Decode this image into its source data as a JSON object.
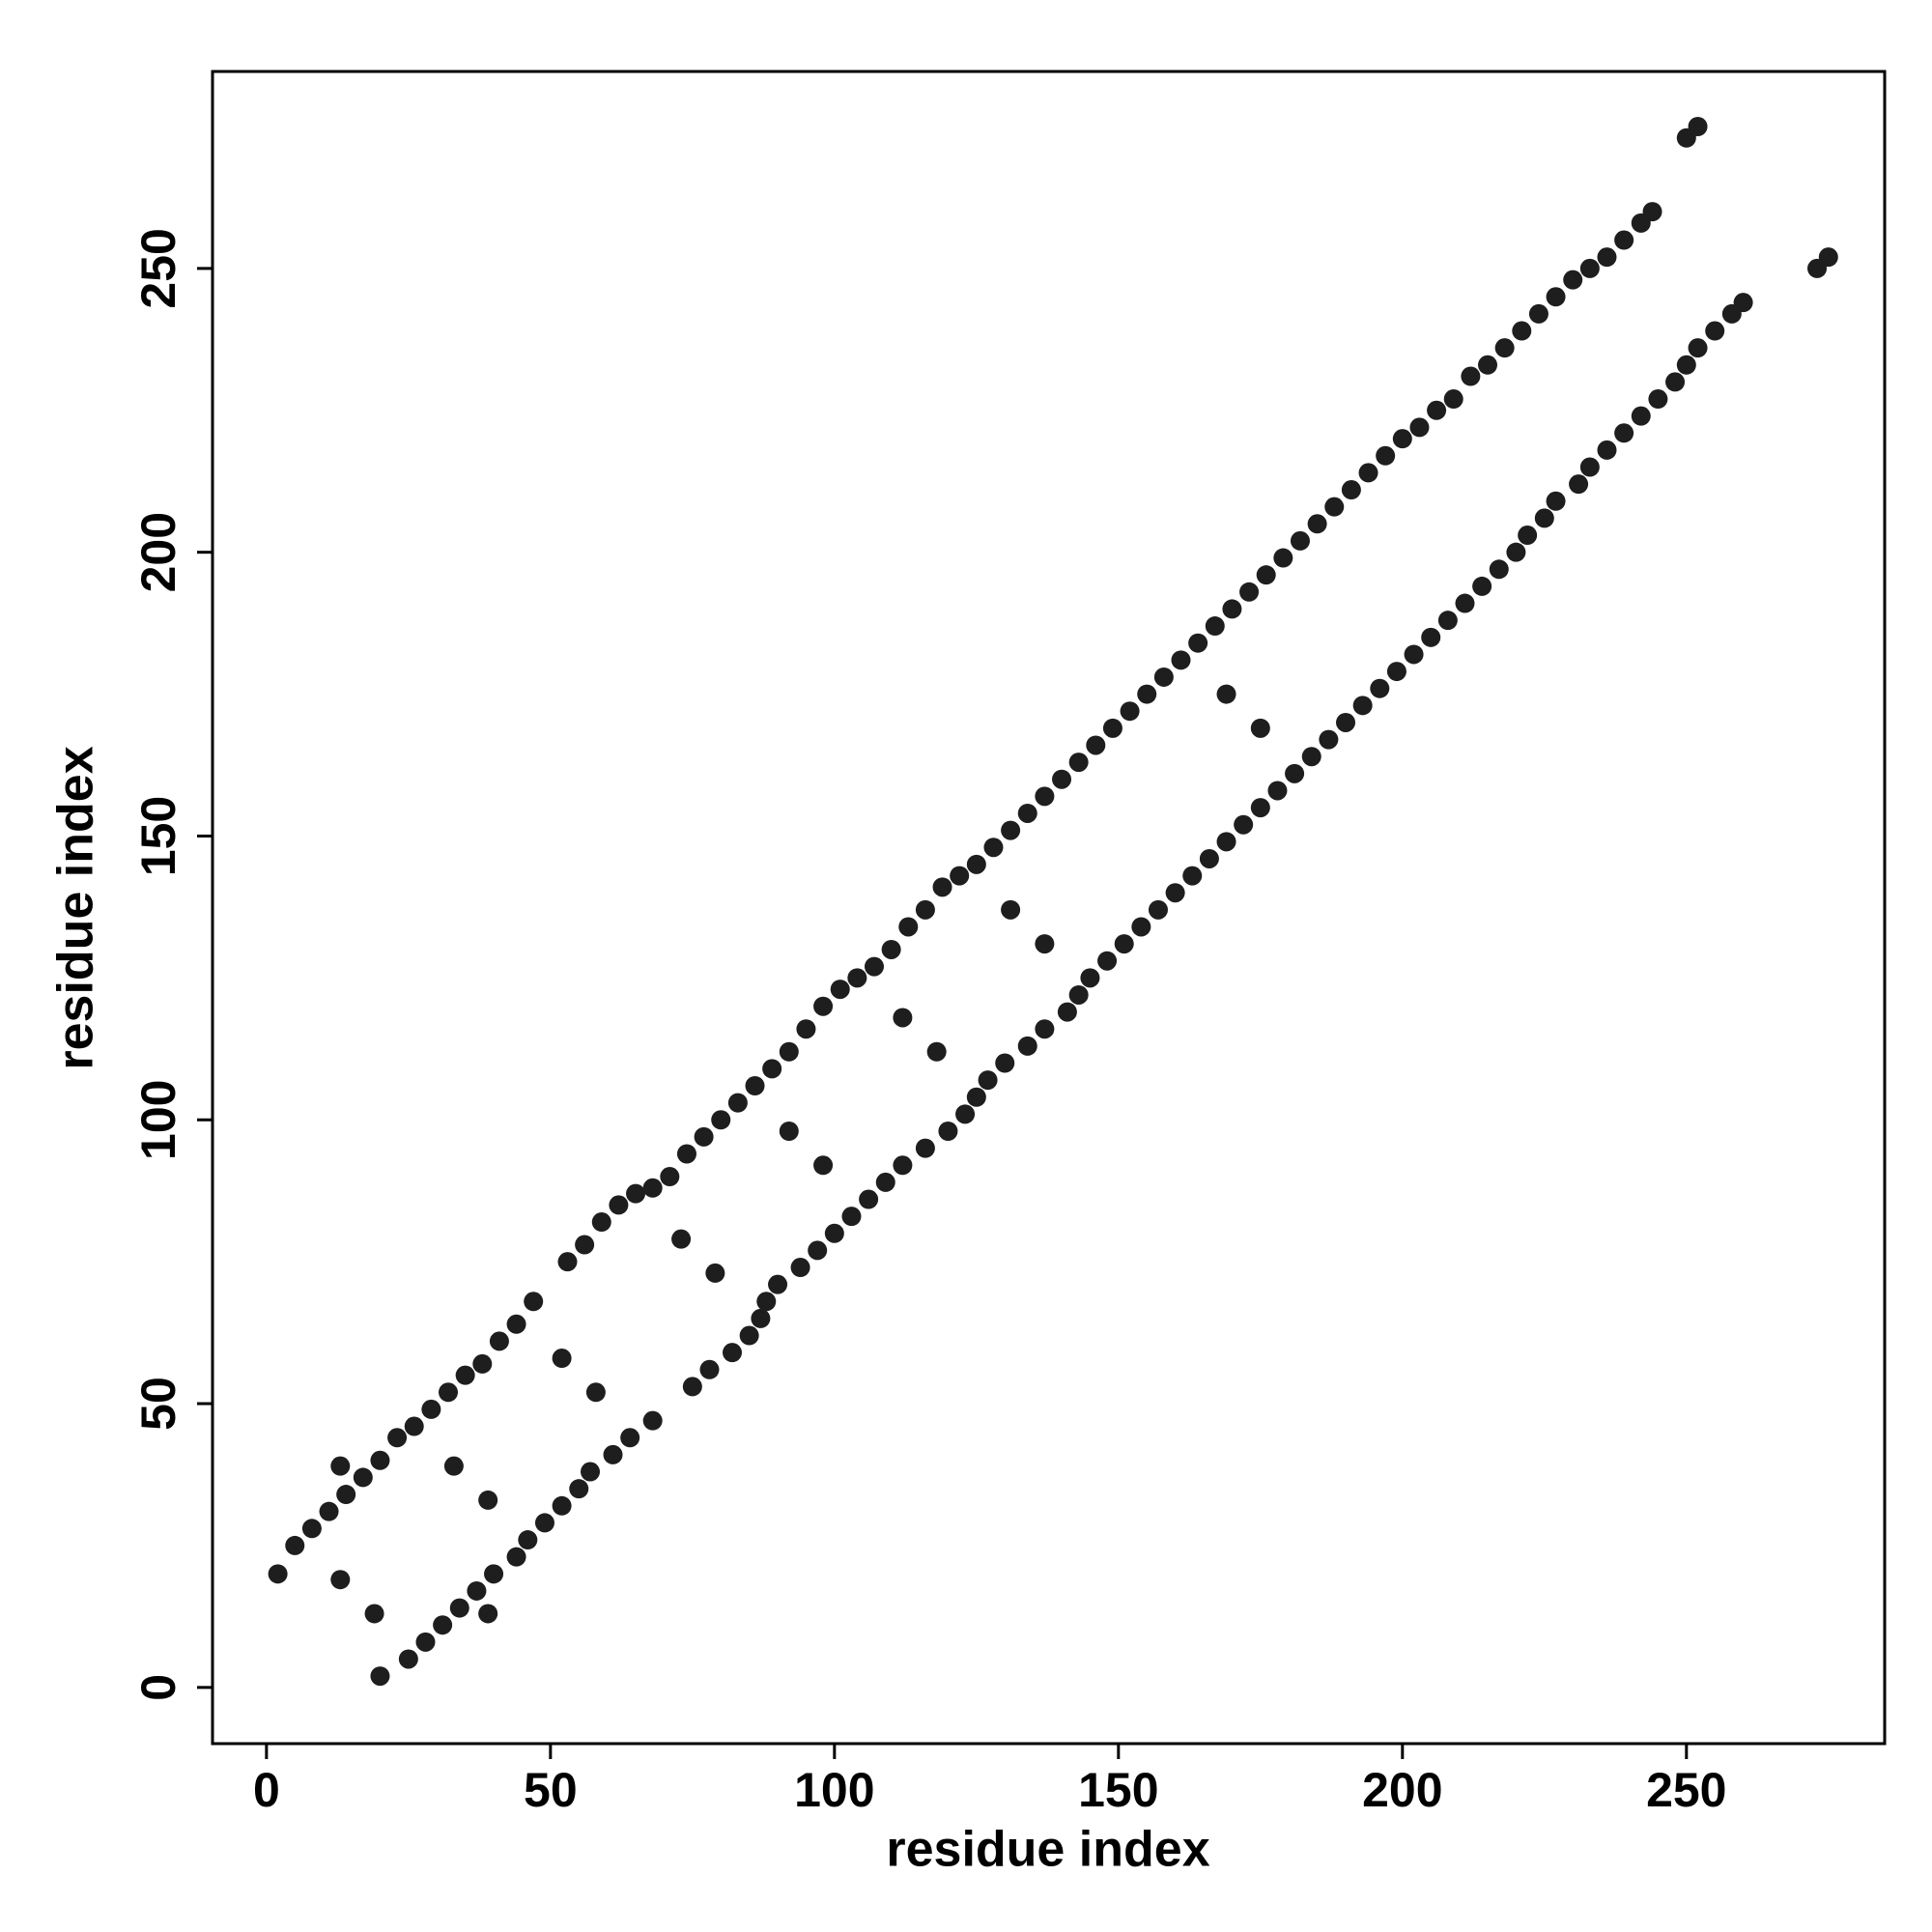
{
  "chart_data": {
    "type": "scatter",
    "x_label": "residue index",
    "y_label": "residue index",
    "color": "#1e1e1e",
    "xlim": [
      -9.5,
      284.9
    ],
    "ylim": [
      -9.9,
      284.7
    ],
    "xticks": [
      0,
      50,
      100,
      150,
      200,
      250
    ],
    "yticks": [
      0,
      50,
      100,
      150,
      200,
      250
    ],
    "x": [
      2,
      5,
      8,
      11,
      14,
      17,
      20,
      23,
      26,
      29,
      32,
      35,
      38,
      41,
      44,
      47,
      53,
      56,
      59,
      62,
      65,
      68,
      71,
      74,
      77,
      80,
      83,
      86,
      89,
      92,
      95,
      98,
      101,
      104,
      107,
      110,
      113,
      116,
      119,
      122,
      125,
      128,
      131,
      134,
      137,
      140,
      143,
      146,
      149,
      152,
      155,
      158,
      161,
      164,
      167,
      170,
      173,
      176,
      179,
      182,
      185,
      188,
      191,
      194,
      197,
      200,
      203,
      206,
      209,
      212,
      215,
      218,
      221,
      224,
      227,
      230,
      233,
      236,
      239,
      242,
      244,
      20,
      25,
      28,
      31,
      34,
      37,
      40,
      44,
      46,
      49,
      52,
      55,
      57,
      61,
      64,
      68,
      75,
      78,
      82,
      85,
      87,
      88,
      90,
      94,
      97,
      100,
      103,
      106,
      109,
      112,
      116,
      120,
      123,
      125,
      127,
      130,
      134,
      137,
      141,
      143,
      145,
      148,
      151,
      154,
      157,
      160,
      163,
      166,
      169,
      172,
      175,
      178,
      181,
      184,
      187,
      190,
      193,
      196,
      199,
      202,
      205,
      208,
      211,
      214,
      217,
      220,
      222,
      225,
      227,
      231,
      233,
      236,
      239,
      242,
      245,
      248,
      250,
      252,
      255,
      258,
      260,
      13,
      39,
      13,
      19,
      33,
      39,
      52,
      58,
      73,
      79,
      92,
      98,
      112,
      118,
      131,
      137,
      169,
      175,
      250,
      252,
      273,
      275
    ],
    "values": [
      20,
      25,
      28,
      31,
      34,
      37,
      40,
      44,
      46,
      49,
      52,
      55,
      57,
      61,
      64,
      68,
      75,
      78,
      82,
      85,
      87,
      88,
      90,
      94,
      97,
      100,
      103,
      106,
      109,
      112,
      116,
      120,
      123,
      125,
      127,
      130,
      134,
      137,
      141,
      143,
      145,
      148,
      151,
      154,
      157,
      160,
      163,
      166,
      169,
      172,
      175,
      178,
      181,
      184,
      187,
      190,
      193,
      196,
      199,
      202,
      205,
      208,
      211,
      214,
      217,
      220,
      222,
      225,
      227,
      231,
      233,
      236,
      239,
      242,
      245,
      248,
      250,
      252,
      255,
      258,
      260,
      2,
      5,
      8,
      11,
      14,
      17,
      20,
      23,
      26,
      29,
      32,
      35,
      38,
      41,
      44,
      47,
      53,
      56,
      59,
      62,
      65,
      68,
      71,
      74,
      77,
      80,
      83,
      86,
      89,
      92,
      95,
      98,
      101,
      104,
      107,
      110,
      113,
      116,
      119,
      122,
      125,
      128,
      131,
      134,
      137,
      140,
      143,
      146,
      149,
      152,
      155,
      158,
      161,
      164,
      167,
      170,
      173,
      176,
      179,
      182,
      185,
      188,
      191,
      194,
      197,
      200,
      203,
      206,
      209,
      212,
      215,
      218,
      221,
      224,
      227,
      230,
      233,
      236,
      239,
      242,
      244,
      39,
      13,
      19,
      13,
      39,
      33,
      58,
      52,
      79,
      73,
      98,
      92,
      118,
      112,
      137,
      131,
      175,
      169,
      273,
      275,
      250,
      252
    ]
  }
}
